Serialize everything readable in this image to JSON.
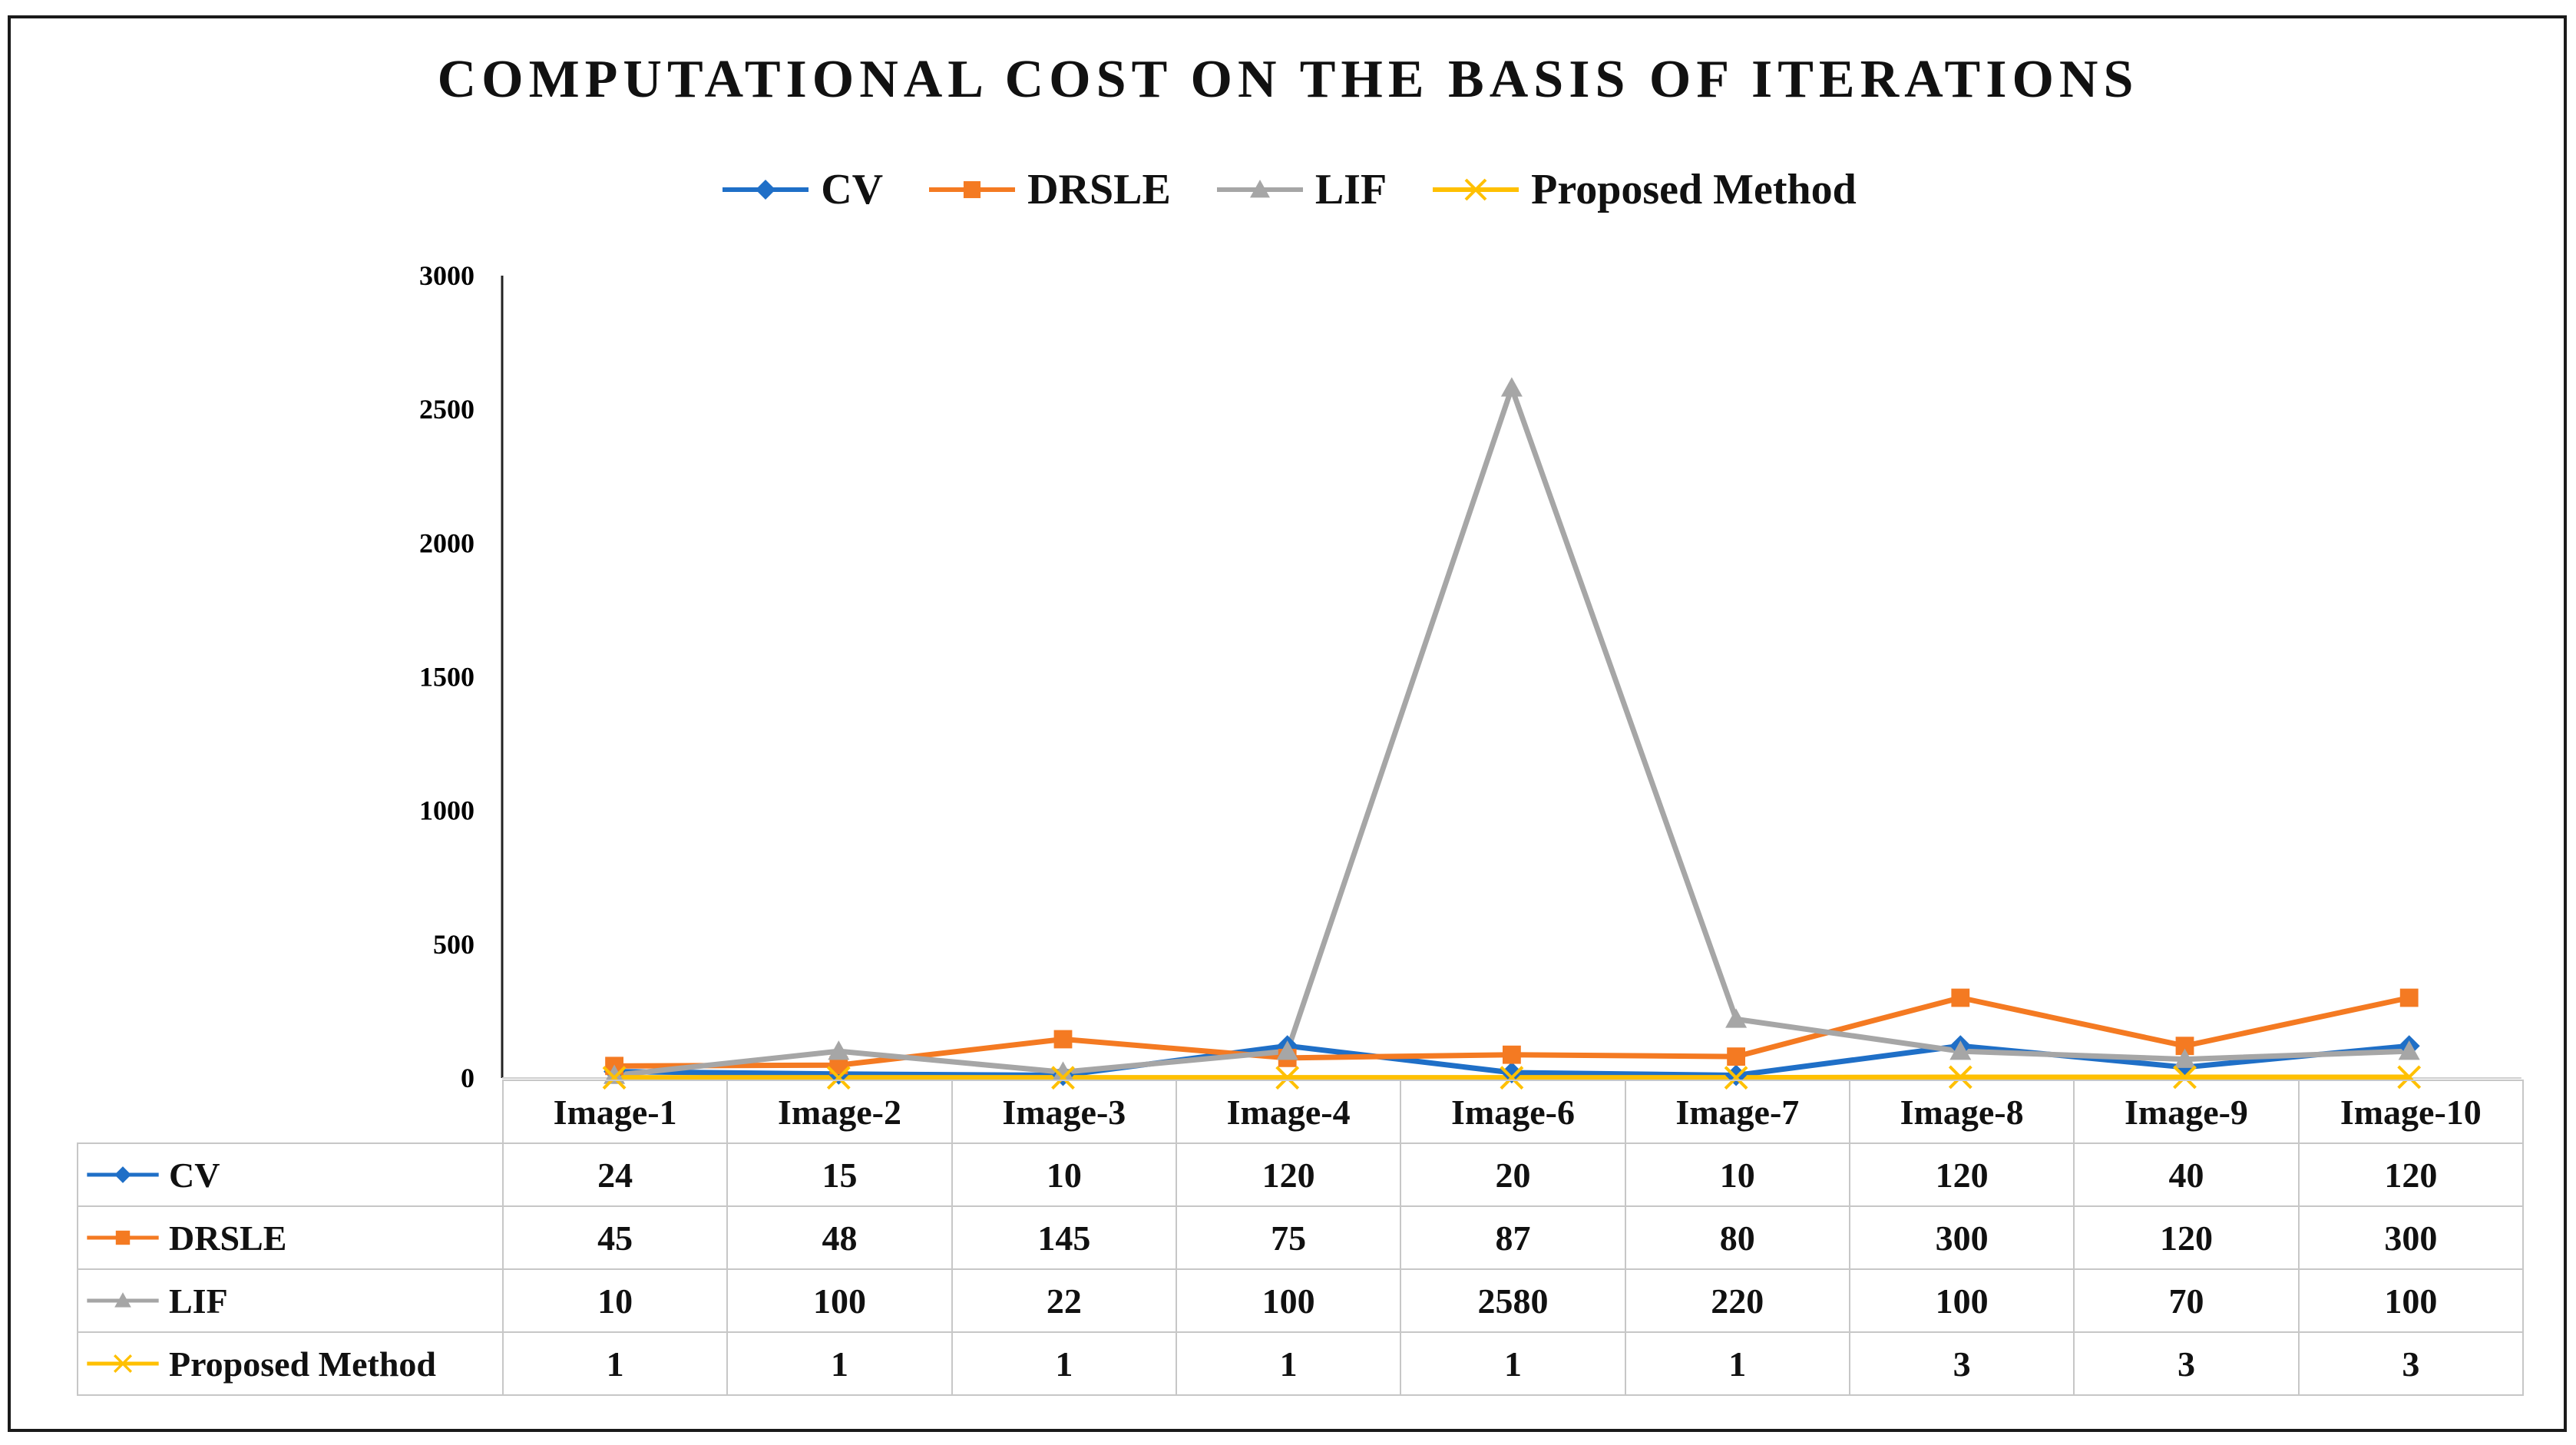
{
  "chart_data": {
    "type": "line",
    "title": "COMPUTATIONAL COST ON THE BASIS OF ITERATIONS",
    "xlabel": "",
    "ylabel": "",
    "categories": [
      "Image-1",
      "Image-2",
      "Image-3",
      "Image-4",
      "Image-6",
      "Image-7",
      "Image-8",
      "Image-9",
      "Image-10"
    ],
    "ylim": [
      0,
      3000
    ],
    "yticks": [
      "0",
      "500",
      "1000",
      "1500",
      "2000",
      "2500",
      "3000"
    ],
    "legend_position": "top-center",
    "data_table": true,
    "series": [
      {
        "name": "CV",
        "color": "#1f6fc7",
        "marker": "diamond",
        "values": [
          24,
          15,
          10,
          120,
          20,
          10,
          120,
          40,
          120
        ]
      },
      {
        "name": "DRSLE",
        "color": "#f47a22",
        "marker": "square",
        "values": [
          45,
          48,
          145,
          75,
          87,
          80,
          300,
          120,
          300
        ]
      },
      {
        "name": "LIF",
        "color": "#a6a6a6",
        "marker": "triangle",
        "values": [
          10,
          100,
          22,
          100,
          2580,
          220,
          100,
          70,
          100
        ]
      },
      {
        "name": "Proposed Method",
        "color": "#ffc000",
        "marker": "x",
        "values": [
          1,
          1,
          1,
          1,
          1,
          1,
          3,
          3,
          3
        ]
      }
    ]
  }
}
